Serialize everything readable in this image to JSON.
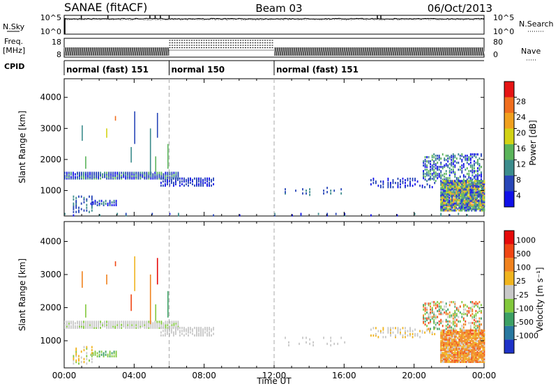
{
  "header": {
    "station": "SANAE (fitACF)",
    "beam": "Beam 03",
    "date": "06/Oct/2013"
  },
  "chart_data": [
    {
      "type": "line",
      "name": "noise",
      "left_label": "N.Sky",
      "right_label": "N.Search",
      "left_ticks": [
        "10^5",
        "10^0"
      ],
      "right_ticks": [
        "10^5",
        "10^0"
      ],
      "series": [
        {
          "name": "N.Sky",
          "style": "solid",
          "level": 0.82,
          "spikes_h": [
            0.98,
            2.5,
            4.9,
            5.2,
            5.5,
            6.0,
            17.9,
            18.1
          ]
        },
        {
          "name": "N.Search",
          "style": "dotted",
          "level": 0.78
        }
      ],
      "drop_h": 0.0
    },
    {
      "type": "line",
      "name": "frequency",
      "left_label": "Freq.",
      "left_unit": "[MHz]",
      "right_label": "Nave",
      "left_ticks": [
        "18",
        "8"
      ],
      "right_ticks": [
        "80",
        "0"
      ],
      "dense_ranges_h": [
        [
          0,
          6
        ],
        [
          12,
          24
        ]
      ],
      "sparse_range_h": [
        6,
        12
      ]
    },
    {
      "type": "table",
      "name": "cpid",
      "label": "CPID",
      "segments": [
        {
          "start_h": 0,
          "end_h": 6,
          "text": "normal (fast) 151"
        },
        {
          "start_h": 6,
          "end_h": 12,
          "text": "normal 150"
        },
        {
          "start_h": 12,
          "end_h": 24,
          "text": "normal (fast) 151"
        }
      ]
    },
    {
      "type": "heatmap",
      "name": "power",
      "ylabel": "Slant Range [km]",
      "yticks": [
        1000,
        2000,
        3000,
        4000
      ],
      "ylim": [
        180,
        4600
      ],
      "colorbar": {
        "label": "Power [dB]",
        "ticks": [
          "4",
          "8",
          "12",
          "16",
          "20",
          "24",
          "28"
        ],
        "colors": [
          "#1010e8",
          "#2846b8",
          "#3c8c8c",
          "#5ab45a",
          "#d2d214",
          "#f0a01e",
          "#f06e1e",
          "#e61414"
        ]
      },
      "scatter": [
        {
          "x": [
            0,
            6.5
          ],
          "y": [
            1380,
            1580
          ],
          "step": 0.12,
          "density": 0.95,
          "colors": [
            0,
            1,
            1,
            1,
            2,
            3
          ]
        },
        {
          "x": [
            5.5,
            8.5
          ],
          "y": [
            1150,
            1420
          ],
          "step": 0.12,
          "density": 0.6,
          "colors": [
            0,
            1,
            1
          ]
        },
        {
          "x": [
            1.5,
            3.0
          ],
          "y": [
            520,
            680
          ],
          "step": 0.12,
          "density": 0.6,
          "colors": [
            0,
            1,
            2
          ]
        },
        {
          "x": [
            0.5,
            1.6
          ],
          "y": [
            300,
            800
          ],
          "step": 0.15,
          "density": 0.35,
          "colors": [
            1,
            2
          ]
        },
        {
          "x": [
            12.6,
            16.0
          ],
          "y": [
            850,
            1080
          ],
          "step": 0.2,
          "density": 0.15,
          "colors": [
            1,
            2
          ]
        },
        {
          "x": [
            17.5,
            21.2
          ],
          "y": [
            1100,
            1400
          ],
          "step": 0.14,
          "density": 0.45,
          "colors": [
            0,
            1,
            1
          ]
        },
        {
          "x": [
            20.5,
            23.9
          ],
          "y": [
            1300,
            2200
          ],
          "step": 0.1,
          "density": 0.45,
          "colors": [
            0,
            1,
            2,
            3
          ]
        },
        {
          "x": [
            21.5,
            24
          ],
          "y": [
            350,
            1300
          ],
          "step": 0.08,
          "density": 0.9,
          "colors": [
            0,
            1,
            2,
            3,
            4,
            5,
            3
          ]
        },
        {
          "x": [
            0,
            24
          ],
          "y": [
            190,
            240
          ],
          "step": 0.5,
          "density": 0.35,
          "colors": [
            0,
            1,
            2
          ]
        }
      ],
      "streaks": [
        {
          "x": 1.0,
          "y": [
            2600,
            3100
          ],
          "color": 2
        },
        {
          "x": 1.2,
          "y": [
            1700,
            2100
          ],
          "color": 3
        },
        {
          "x": 2.4,
          "y": [
            2700,
            3000
          ],
          "color": 4
        },
        {
          "x": 2.9,
          "y": [
            3250,
            3400
          ],
          "color": 6
        },
        {
          "x": 4.0,
          "y": [
            2500,
            3550
          ],
          "color": 1
        },
        {
          "x": 4.9,
          "y": [
            1500,
            3000
          ],
          "color": 2
        },
        {
          "x": 5.2,
          "y": [
            1600,
            2100
          ],
          "color": 3
        },
        {
          "x": 5.3,
          "y": [
            2700,
            3500
          ],
          "color": 1
        },
        {
          "x": 5.9,
          "y": [
            1700,
            2500
          ],
          "color": 3
        },
        {
          "x": 3.8,
          "y": [
            1900,
            2400
          ],
          "color": 2
        }
      ]
    },
    {
      "type": "heatmap",
      "name": "velocity",
      "ylabel": "Slant Range [km]",
      "yticks": [
        1000,
        2000,
        3000,
        4000
      ],
      "ylim": [
        180,
        4600
      ],
      "xlabel": "Time UT",
      "xticks": [
        "00:00",
        "04:00",
        "08:00",
        "12:00",
        "16:00",
        "20:00",
        "00:00"
      ],
      "xlim_h": [
        0,
        24
      ],
      "colorbar": {
        "label": "Velocity [m s⁻¹]",
        "ticks": [
          "1000",
          "500",
          "100",
          "25",
          "-25",
          "-100",
          "-500",
          "-1000"
        ],
        "colors": [
          "#1e32c8",
          "#2878a0",
          "#3ca064",
          "#82c83c",
          "#c8c8c8",
          "#f0b41e",
          "#f0821e",
          "#f04614",
          "#e60a0a"
        ]
      },
      "scatter": [
        {
          "x": [
            0,
            6.5
          ],
          "y": [
            1380,
            1580
          ],
          "step": 0.12,
          "density": 0.95,
          "colors": [
            4,
            4,
            4,
            4,
            3
          ]
        },
        {
          "x": [
            5.5,
            8.5
          ],
          "y": [
            1150,
            1420
          ],
          "step": 0.12,
          "density": 0.6,
          "colors": [
            4,
            4,
            4
          ]
        },
        {
          "x": [
            1.5,
            3.0
          ],
          "y": [
            520,
            680
          ],
          "step": 0.12,
          "density": 0.6,
          "colors": [
            3,
            3,
            2
          ]
        },
        {
          "x": [
            0.5,
            1.6
          ],
          "y": [
            300,
            800
          ],
          "step": 0.15,
          "density": 0.3,
          "colors": [
            5,
            4,
            3
          ]
        },
        {
          "x": [
            12.6,
            16.0
          ],
          "y": [
            850,
            1080
          ],
          "step": 0.2,
          "density": 0.15,
          "colors": [
            4
          ]
        },
        {
          "x": [
            17.5,
            21.2
          ],
          "y": [
            1100,
            1400
          ],
          "step": 0.14,
          "density": 0.45,
          "colors": [
            4,
            4,
            5
          ]
        },
        {
          "x": [
            20.5,
            23.9
          ],
          "y": [
            1300,
            2200
          ],
          "step": 0.1,
          "density": 0.4,
          "colors": [
            6,
            7,
            3,
            2,
            4
          ]
        },
        {
          "x": [
            21.5,
            24
          ],
          "y": [
            350,
            1300
          ],
          "step": 0.08,
          "density": 0.9,
          "colors": [
            6,
            6,
            5,
            6,
            4,
            7,
            5
          ]
        }
      ],
      "streaks": [
        {
          "x": 1.0,
          "y": [
            2600,
            3100
          ],
          "color": 6
        },
        {
          "x": 1.2,
          "y": [
            1700,
            2100
          ],
          "color": 3
        },
        {
          "x": 2.4,
          "y": [
            2700,
            3000
          ],
          "color": 6
        },
        {
          "x": 2.9,
          "y": [
            3250,
            3400
          ],
          "color": 7
        },
        {
          "x": 4.0,
          "y": [
            2500,
            3550
          ],
          "color": 5
        },
        {
          "x": 4.9,
          "y": [
            1500,
            3000
          ],
          "color": 6
        },
        {
          "x": 5.2,
          "y": [
            1600,
            2100
          ],
          "color": 3
        },
        {
          "x": 5.3,
          "y": [
            2700,
            3500
          ],
          "color": 8
        },
        {
          "x": 5.9,
          "y": [
            1700,
            2500
          ],
          "color": 2
        },
        {
          "x": 3.8,
          "y": [
            1900,
            2400
          ],
          "color": 7
        }
      ]
    }
  ],
  "dashed_times_h": [
    6,
    12
  ]
}
